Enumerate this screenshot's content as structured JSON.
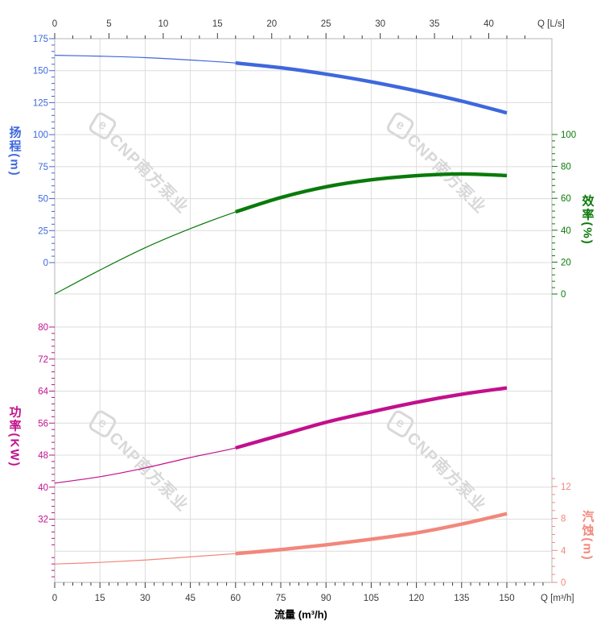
{
  "watermark": {
    "logo_glyph": "e",
    "text": "CNP南方泵业",
    "color": "#cfcfcf"
  },
  "axes": {
    "top": {
      "unit_label": "Q [L/s]",
      "majors": [
        0,
        5,
        10,
        15,
        20,
        25,
        30,
        35,
        40
      ],
      "minor_step": 1.6667,
      "color": "#3c3c3c"
    },
    "bottom": {
      "unit_label": "Q [m³/h]",
      "title": "流量 (m³/h)",
      "majors": [
        0,
        15,
        30,
        45,
        60,
        75,
        90,
        105,
        120,
        135,
        150
      ],
      "minor_step": 3,
      "color": "#3c3c3c"
    },
    "head": {
      "title": "扬程(m)",
      "majors": [
        175,
        150,
        125,
        100,
        75,
        50,
        25,
        0
      ],
      "minor_step": 5,
      "color": "#3E68DC"
    },
    "eff": {
      "title": "效率(%)",
      "majors": [
        100,
        80,
        60,
        40,
        20,
        0
      ],
      "minor_step": 4,
      "color": "#0A7A0A"
    },
    "power": {
      "title": "功率(KW)",
      "majors": [
        80,
        72,
        64,
        56,
        48,
        40,
        32
      ],
      "minor_step": 1.6,
      "color": "#C2108C"
    },
    "npsh": {
      "title": "汽蚀(m)",
      "majors": [
        12,
        8,
        4,
        0
      ],
      "minor_step": 1,
      "color": "#F2877C"
    }
  },
  "chart_data": {
    "type": "line",
    "title": "",
    "xlabel_bottom": "流量 (m³/h)",
    "x_unit_bottom": "Q [m³/h]",
    "x_unit_top": "Q [L/s]",
    "x_bottom_range_m3h": [
      0,
      150
    ],
    "x_top_range_lps": [
      0,
      41.67
    ],
    "grid": true,
    "bold_duty_range_m3h": [
      60,
      150
    ],
    "x_m3h": [
      0,
      15,
      30,
      45,
      60,
      75,
      90,
      105,
      120,
      135,
      150
    ],
    "series": [
      {
        "name": "head",
        "label": "扬程",
        "unit": "m",
        "ylim": [
          0,
          175
        ],
        "color": "#3E68DC",
        "values": [
          162,
          161.3,
          160.2,
          158.3,
          156,
          152.3,
          147.3,
          141.3,
          134.2,
          126.2,
          117
        ]
      },
      {
        "name": "efficiency",
        "label": "效率",
        "unit": "%",
        "ylim": [
          0,
          100
        ],
        "color": "#0A7A0A",
        "values": [
          0,
          15,
          29,
          41,
          51.5,
          60.5,
          67.2,
          71.6,
          74.2,
          75.3,
          74.3
        ]
      },
      {
        "name": "power",
        "label": "功率",
        "unit": "KW",
        "ylim": [
          32,
          80
        ],
        "color": "#C2108C",
        "values": [
          41,
          42.6,
          44.8,
          47.4,
          49.8,
          53,
          56.2,
          58.8,
          61.2,
          63.2,
          64.8
        ]
      },
      {
        "name": "npsh",
        "label": "汽蚀",
        "unit": "m",
        "ylim": [
          0,
          12
        ],
        "color": "#F2877C",
        "values": [
          2.3,
          2.5,
          2.8,
          3.2,
          3.6,
          4.1,
          4.7,
          5.4,
          6.2,
          7.3,
          8.6
        ]
      }
    ]
  }
}
